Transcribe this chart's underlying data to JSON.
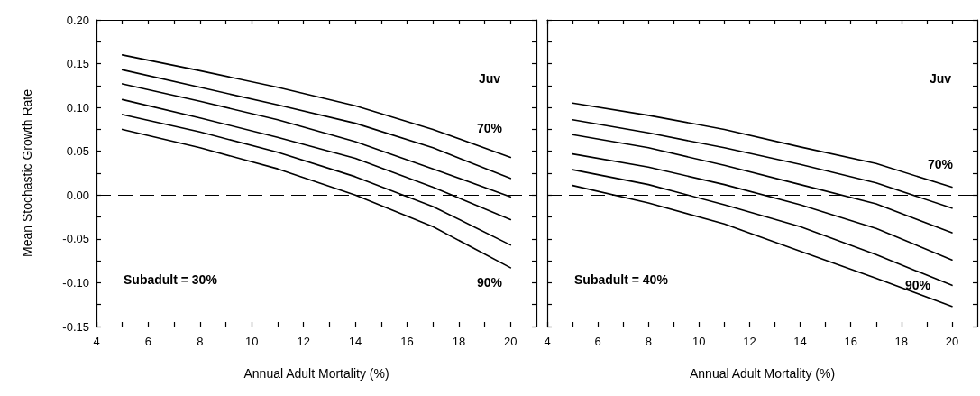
{
  "chart_data": [
    {
      "type": "line",
      "xlabel": "Annual Adult Mortality (%)",
      "ylabel": "Mean Stochastic Growth Rate",
      "x": [
        5,
        8,
        11,
        14,
        17,
        20
      ],
      "series": [
        {
          "color": "#000000",
          "values": [
            0.16,
            0.142,
            0.123,
            0.102,
            0.075,
            0.043
          ]
        },
        {
          "color": "#000000",
          "values": [
            0.143,
            0.123,
            0.103,
            0.082,
            0.054,
            0.019
          ]
        },
        {
          "color": "#000000",
          "values": [
            0.127,
            0.107,
            0.086,
            0.061,
            0.03,
            -0.002
          ]
        },
        {
          "color": "#000000",
          "values": [
            0.109,
            0.088,
            0.066,
            0.042,
            0.009,
            -0.028
          ]
        },
        {
          "color": "#000000",
          "values": [
            0.092,
            0.072,
            0.049,
            0.021,
            -0.013,
            -0.057
          ]
        },
        {
          "color": "#000000",
          "values": [
            0.075,
            0.054,
            0.03,
            0.0,
            -0.036,
            -0.083
          ]
        }
      ],
      "xlim": [
        4,
        21
      ],
      "xticks": [
        4,
        6,
        8,
        10,
        12,
        14,
        16,
        18,
        20
      ],
      "ylim": [
        -0.15,
        0.2
      ],
      "yticks": [
        {
          "value": -0.15,
          "label": "-0.15"
        },
        {
          "value": -0.1,
          "label": "-0.10"
        },
        {
          "value": -0.05,
          "label": "-0.05"
        },
        {
          "value": 0,
          "label": "0.00"
        },
        {
          "value": 0.05,
          "label": "0.05"
        },
        {
          "value": 0.1,
          "label": "0.10"
        },
        {
          "value": 0.15,
          "label": "0.15"
        },
        {
          "value": 0.2,
          "label": "0.20"
        }
      ],
      "ref_lines": [
        {
          "axis": "y",
          "value": 0,
          "color": "#000000",
          "line_style": "dashed"
        }
      ],
      "annotations": [
        "Juv",
        "70%",
        "90%",
        "Subadult = 30%"
      ],
      "grid": false,
      "marker": "none",
      "line_style": "solid"
    },
    {
      "type": "line",
      "xlabel": "Annual Adult Mortality (%)",
      "x": [
        5,
        8,
        11,
        14,
        17,
        20
      ],
      "series": [
        {
          "color": "#000000",
          "values": [
            0.105,
            0.091,
            0.075,
            0.055,
            0.036,
            0.009
          ]
        },
        {
          "color": "#000000",
          "values": [
            0.086,
            0.071,
            0.054,
            0.035,
            0.014,
            -0.015
          ]
        },
        {
          "color": "#000000",
          "values": [
            0.069,
            0.054,
            0.034,
            0.012,
            -0.01,
            -0.043
          ]
        },
        {
          "color": "#000000",
          "values": [
            0.047,
            0.032,
            0.012,
            -0.011,
            -0.038,
            -0.074
          ]
        },
        {
          "color": "#000000",
          "values": [
            0.029,
            0.012,
            -0.011,
            -0.036,
            -0.068,
            -0.103
          ]
        },
        {
          "color": "#000000",
          "values": [
            0.011,
            -0.009,
            -0.033,
            -0.064,
            -0.095,
            -0.127
          ]
        }
      ],
      "xlim": [
        4,
        21
      ],
      "xticks": [
        4,
        6,
        8,
        10,
        12,
        14,
        16,
        18,
        20
      ],
      "ylim": [
        -0.15,
        0.2
      ],
      "yticks": [
        -0.15,
        -0.1,
        -0.05,
        0,
        0.05,
        0.1,
        0.15,
        0.2
      ],
      "tick_labels": "x",
      "ref_lines": [
        {
          "axis": "y",
          "value": 0,
          "color": "#000000",
          "line_style": "dashed"
        }
      ],
      "annotations": [
        "Juv",
        "70%",
        "90%",
        "Subadult = 40%"
      ],
      "grid": false,
      "marker": "none",
      "line_style": "solid"
    }
  ]
}
